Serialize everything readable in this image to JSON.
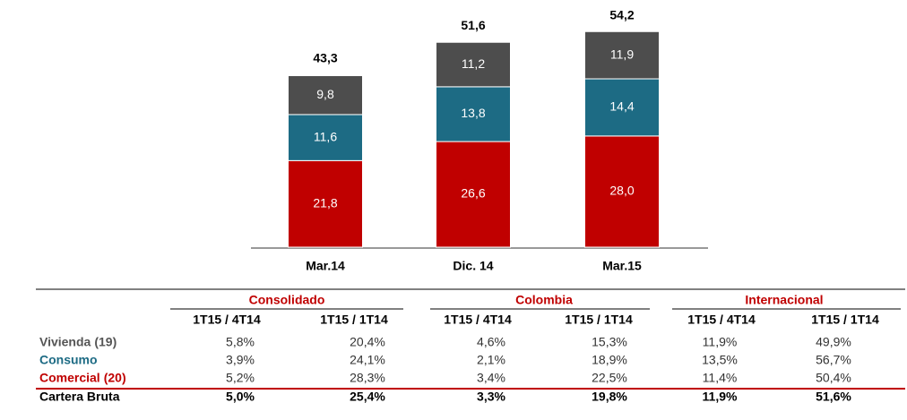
{
  "chart_data": {
    "type": "stacked_bar",
    "categories": [
      "Mar.14",
      "Dic. 14",
      "Mar.15"
    ],
    "series": [
      {
        "color": "#c00000",
        "values": [
          21.8,
          26.6,
          28.0
        ],
        "value_labels": [
          "21,8",
          "26,6",
          "28,0"
        ]
      },
      {
        "color": "#1d6b84",
        "values": [
          11.6,
          13.8,
          14.4
        ],
        "value_labels": [
          "11,6",
          "13,8",
          "14,4"
        ]
      },
      {
        "color": "#4d4d4d",
        "values": [
          9.8,
          11.2,
          11.9
        ],
        "value_labels": [
          "9,8",
          "11,2",
          "11,9"
        ]
      }
    ],
    "totals": [
      43.3,
      51.6,
      54.2
    ],
    "total_labels": [
      "43,3",
      "51,6",
      "54,2"
    ],
    "ylim": [
      0,
      60
    ]
  },
  "table": {
    "groups": [
      "Consolidado",
      "Colombia",
      "Internacional"
    ],
    "subheaders": [
      "1T15 / 4T14",
      "1T15 / 1T14",
      "1T15 / 4T14",
      "1T15 / 1T14",
      "1T15 / 4T14",
      "1T15 / 1T14"
    ],
    "rows": [
      {
        "label": "Vivienda",
        "note": "(19)",
        "values": [
          "5,8%",
          "20,4%",
          "4,6%",
          "15,3%",
          "11,9%",
          "49,9%"
        ]
      },
      {
        "label": "Consumo",
        "values": [
          "3,9%",
          "24,1%",
          "2,1%",
          "18,9%",
          "13,5%",
          "56,7%"
        ]
      },
      {
        "label": "Comercial",
        "note": "(20)",
        "values": [
          "5,2%",
          "28,3%",
          "3,4%",
          "22,5%",
          "11,4%",
          "50,4%"
        ]
      },
      {
        "label": "Cartera Bruta",
        "values": [
          "5,0%",
          "25,4%",
          "3,3%",
          "19,8%",
          "11,9%",
          "51,6%"
        ]
      }
    ]
  }
}
